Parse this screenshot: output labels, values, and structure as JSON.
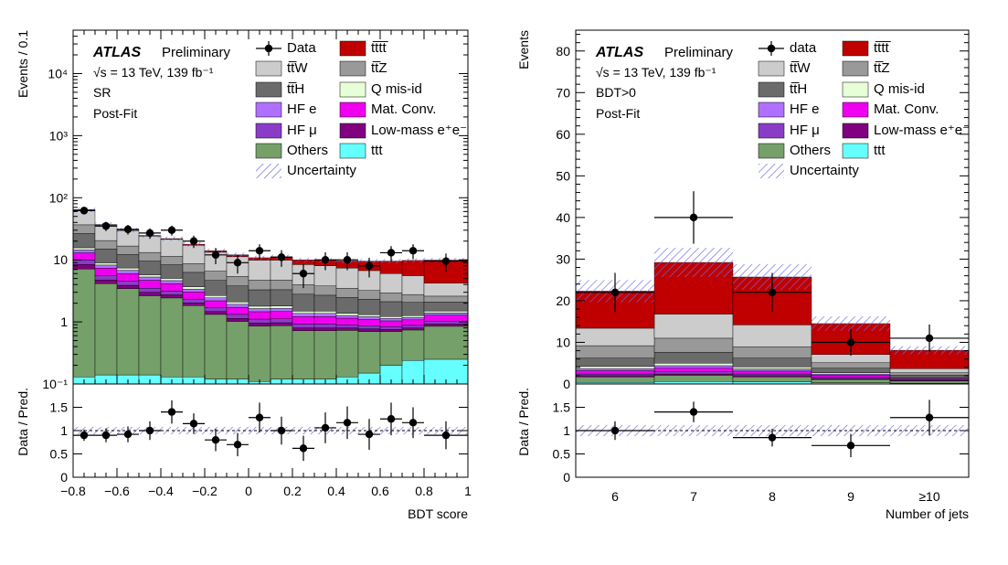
{
  "colors": {
    "tttt": "#c00000",
    "ttW": "#cccccc",
    "ttZ": "#999999",
    "ttH": "#6b6b6b",
    "qmisid": "#e6ffd6",
    "hfe": "#b070ff",
    "matconv": "#f000f0",
    "hfmu": "#8a3cc8",
    "lowmass": "#800080",
    "others": "#76a06a",
    "ttt": "#66ffff",
    "unc": "#7070e0"
  },
  "legend_labels": {
    "data_left": "Data",
    "data_right": "data",
    "tttt": "tt̅tt̅",
    "ttW": "tt̅W",
    "ttZ": "tt̅Z",
    "ttH": "tt̅H",
    "qmisid": "Q mis-id",
    "hfe": "HF e",
    "matconv": "Mat. Conv.",
    "hfmu": "HF μ",
    "lowmass": "Low-mass e⁺e⁻",
    "others": "Others",
    "ttt": "ttt",
    "unc": "Uncertainty"
  },
  "chart_data": [
    {
      "type": "bar",
      "stacked": true,
      "log_y": true,
      "atlas_label": "ATLAS",
      "atlas_sub": "Preliminary",
      "energy_label": "√s = 13 TeV, 139 fb⁻¹",
      "region_label": "SR",
      "fit_label": "Post-Fit",
      "ylabel": "Events / 0.1",
      "xlabel": "BDT score",
      "ratio_ylabel": "Data / Pred.",
      "ylim": [
        0.1,
        50000
      ],
      "xlim": [
        -0.8,
        1.0
      ],
      "bin_edges": [
        -0.8,
        -0.7,
        -0.6,
        -0.5,
        -0.4,
        -0.3,
        -0.2,
        -0.1,
        0.0,
        0.1,
        0.2,
        0.3,
        0.4,
        0.5,
        0.6,
        0.7,
        0.8,
        1.0
      ],
      "series": [
        {
          "name": "ttt",
          "key": "ttt",
          "values": [
            0.13,
            0.14,
            0.14,
            0.14,
            0.13,
            0.13,
            0.12,
            0.12,
            0.11,
            0.12,
            0.12,
            0.12,
            0.13,
            0.15,
            0.2,
            0.24,
            0.25
          ]
        },
        {
          "name": "Others",
          "key": "others",
          "values": [
            7.0,
            4.0,
            3.3,
            2.5,
            2.3,
            1.7,
            1.2,
            0.9,
            0.75,
            0.75,
            0.6,
            0.6,
            0.6,
            0.55,
            0.5,
            0.5,
            0.6
          ]
        },
        {
          "name": "Low-mass e⁺e⁻",
          "key": "lowmass",
          "values": [
            1.3,
            0.6,
            0.45,
            0.35,
            0.3,
            0.2,
            0.15,
            0.12,
            0.1,
            0.1,
            0.08,
            0.08,
            0.07,
            0.07,
            0.06,
            0.06,
            0.08
          ]
        },
        {
          "name": "HF μ",
          "key": "hfmu",
          "values": [
            1.5,
            0.8,
            0.6,
            0.5,
            0.4,
            0.3,
            0.22,
            0.18,
            0.15,
            0.15,
            0.12,
            0.12,
            0.1,
            0.1,
            0.08,
            0.08,
            0.1
          ]
        },
        {
          "name": "Mat. Conv.",
          "key": "matconv",
          "values": [
            3.0,
            1.8,
            1.5,
            1.2,
            1.0,
            0.7,
            0.5,
            0.4,
            0.35,
            0.35,
            0.3,
            0.3,
            0.25,
            0.22,
            0.2,
            0.2,
            0.25
          ]
        },
        {
          "name": "HF e",
          "key": "hfe",
          "values": [
            1.5,
            0.9,
            0.8,
            0.6,
            0.5,
            0.35,
            0.25,
            0.2,
            0.18,
            0.18,
            0.15,
            0.15,
            0.12,
            0.12,
            0.1,
            0.1,
            0.12
          ]
        },
        {
          "name": "Q mis-id",
          "key": "qmisid",
          "values": [
            1.2,
            0.7,
            0.6,
            0.45,
            0.4,
            0.3,
            0.22,
            0.18,
            0.15,
            0.15,
            0.12,
            0.12,
            0.1,
            0.1,
            0.08,
            0.08,
            0.1
          ]
        },
        {
          "name": "tt̅H",
          "key": "ttH",
          "values": [
            11,
            6.0,
            4.8,
            3.8,
            3.3,
            2.6,
            2.0,
            1.7,
            1.5,
            1.5,
            1.3,
            1.2,
            1.1,
            1.0,
            0.9,
            0.8,
            0.6
          ]
        },
        {
          "name": "tt̅Z",
          "key": "ttZ",
          "values": [
            10,
            5.5,
            4.5,
            3.6,
            3.0,
            2.4,
            1.9,
            1.6,
            1.4,
            1.4,
            1.2,
            1.1,
            1.0,
            0.9,
            0.8,
            0.7,
            0.5
          ]
        },
        {
          "name": "tt̅W",
          "key": "ttW",
          "values": [
            27,
            16,
            13,
            11,
            10,
            8.5,
            6.7,
            5.8,
            5.2,
            5.2,
            4.4,
            4.2,
            3.9,
            3.5,
            3.1,
            2.8,
            1.6
          ]
        },
        {
          "name": "tt̅tt̅",
          "key": "tttt",
          "values": [
            0.6,
            0.5,
            0.5,
            0.55,
            0.6,
            0.65,
            0.7,
            0.8,
            0.9,
            1.3,
            1.6,
            1.8,
            2.2,
            2.8,
            3.5,
            4.2,
            5.7
          ]
        }
      ],
      "uncertainty_frac": 0.08,
      "data": [
        62,
        35,
        31,
        27,
        30,
        20,
        12,
        9,
        14,
        11,
        6,
        10,
        10,
        8,
        13,
        14,
        9.5
      ],
      "data_err": [
        8,
        6,
        5.5,
        5.2,
        5.5,
        4.5,
        3.5,
        3,
        3.8,
        3.3,
        2.5,
        3.2,
        3.2,
        2.8,
        3.6,
        3.8,
        3.1
      ],
      "ratio": [
        0.9,
        0.9,
        0.92,
        1.0,
        1.4,
        1.15,
        0.8,
        0.7,
        1.28,
        1.0,
        0.62,
        1.06,
        1.17,
        0.92,
        1.25,
        1.17,
        0.9
      ],
      "ratio_err": [
        0.12,
        0.15,
        0.17,
        0.2,
        0.25,
        0.22,
        0.24,
        0.25,
        0.32,
        0.3,
        0.27,
        0.33,
        0.35,
        0.33,
        0.35,
        0.33,
        0.3
      ],
      "ratio_unc_frac": 0.08,
      "ratio_ylim": [
        0,
        2
      ],
      "x_ticks": [
        "−0.8",
        "−0.6",
        "−0.4",
        "−0.2",
        "0",
        "0.2",
        "0.4",
        "0.6",
        "0.8",
        "1"
      ],
      "x_tick_values": [
        -0.8,
        -0.6,
        -0.4,
        -0.2,
        0,
        0.2,
        0.4,
        0.6,
        0.8,
        1.0
      ],
      "y_ticks": [
        "10⁻¹",
        "1",
        "10",
        "10²",
        "10³",
        "10⁴"
      ],
      "y_tick_values": [
        0.1,
        1,
        10,
        100,
        1000,
        10000
      ],
      "ratio_ticks": [
        "0",
        "0.5",
        "1",
        "1.5"
      ],
      "ratio_tick_values": [
        0,
        0.5,
        1,
        1.5
      ]
    },
    {
      "type": "bar",
      "stacked": true,
      "log_y": false,
      "atlas_label": "ATLAS",
      "atlas_sub": "Preliminary",
      "energy_label": "√s = 13 TeV, 139 fb⁻¹",
      "region_label": "BDT>0",
      "fit_label": "Post-Fit",
      "ylabel": "Events",
      "xlabel": "Number of jets",
      "ratio_ylabel": "Data / Pred.",
      "ylim": [
        0,
        85
      ],
      "categories": [
        "6",
        "7",
        "8",
        "9",
        "≥10"
      ],
      "series": [
        {
          "name": "ttt",
          "key": "ttt",
          "values": [
            0.4,
            0.6,
            0.5,
            0.3,
            0.2
          ]
        },
        {
          "name": "Others",
          "key": "others",
          "values": [
            1.3,
            1.5,
            1.2,
            0.8,
            0.5
          ]
        },
        {
          "name": "Low-mass e⁺e⁻",
          "key": "lowmass",
          "values": [
            0.3,
            0.3,
            0.3,
            0.2,
            0.1
          ]
        },
        {
          "name": "HF μ",
          "key": "hfmu",
          "values": [
            0.4,
            0.5,
            0.4,
            0.3,
            0.15
          ]
        },
        {
          "name": "Mat. Conv.",
          "key": "matconv",
          "values": [
            0.8,
            0.9,
            0.7,
            0.5,
            0.3
          ]
        },
        {
          "name": "HF e",
          "key": "hfe",
          "values": [
            0.5,
            0.6,
            0.5,
            0.3,
            0.15
          ]
        },
        {
          "name": "Q mis-id",
          "key": "qmisid",
          "values": [
            0.5,
            0.6,
            0.5,
            0.3,
            0.15
          ]
        },
        {
          "name": "tt̅H",
          "key": "ttH",
          "values": [
            2.0,
            2.6,
            2.1,
            1.1,
            0.55
          ]
        },
        {
          "name": "tt̅Z",
          "key": "ttZ",
          "values": [
            3.0,
            3.4,
            2.7,
            1.3,
            0.6
          ]
        },
        {
          "name": "tt̅W",
          "key": "ttW",
          "values": [
            4.2,
            5.8,
            5.3,
            2.0,
            1.0
          ]
        },
        {
          "name": "tt̅tt̅",
          "key": "tttt",
          "values": [
            8.9,
            12.4,
            11.5,
            7.4,
            4.4
          ]
        }
      ],
      "uncertainty_frac": 0.12,
      "data": [
        22,
        40,
        22,
        10,
        11
      ],
      "data_err": [
        4.7,
        6.3,
        4.7,
        3.2,
        3.3
      ],
      "ratio": [
        1.0,
        1.4,
        0.85,
        0.68,
        1.28
      ],
      "ratio_err": [
        0.2,
        0.22,
        0.19,
        0.25,
        0.38
      ],
      "ratio_unc_frac": 0.12,
      "ratio_ylim": [
        0,
        2
      ],
      "y_ticks": [
        "0",
        "10",
        "20",
        "30",
        "40",
        "50",
        "60",
        "70",
        "80"
      ],
      "y_tick_values": [
        0,
        10,
        20,
        30,
        40,
        50,
        60,
        70,
        80
      ],
      "ratio_ticks": [
        "0",
        "0.5",
        "1",
        "1.5"
      ],
      "ratio_tick_values": [
        0,
        0.5,
        1,
        1.5
      ]
    }
  ]
}
